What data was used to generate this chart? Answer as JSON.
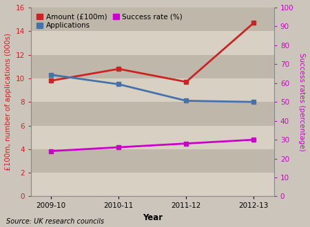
{
  "years": [
    "2009-10",
    "2010-11",
    "2011-12",
    "2012-13"
  ],
  "amount": [
    9.8,
    10.8,
    9.7,
    14.7
  ],
  "applications": [
    10.3,
    9.5,
    8.1,
    8.0
  ],
  "success_rate_pct": [
    24.0,
    26.0,
    28.0,
    30.0
  ],
  "left_ylim": [
    0,
    16
  ],
  "left_yticks": [
    0,
    2,
    4,
    6,
    8,
    10,
    12,
    14,
    16
  ],
  "right_ylim": [
    0,
    100
  ],
  "right_yticks": [
    0,
    10,
    20,
    30,
    40,
    50,
    60,
    70,
    80,
    90,
    100
  ],
  "left_ylabel": "£100m, number of applications (000s)",
  "right_ylabel": "Success rates (percentage)",
  "xlabel": "Year",
  "source_text": "Source: UK research councils",
  "color_amount": "#cc2222",
  "color_applications": "#4472aa",
  "color_success": "#cc00cc",
  "legend_amount": "Amount (£100m)",
  "legend_applications": "Applications",
  "legend_success": "Success rate (%)",
  "bg_color": "#c8bfad",
  "fig_bg": "#ccc5bb",
  "stripe_colors": [
    "#d8d0c2",
    "#bfb8aa"
  ]
}
